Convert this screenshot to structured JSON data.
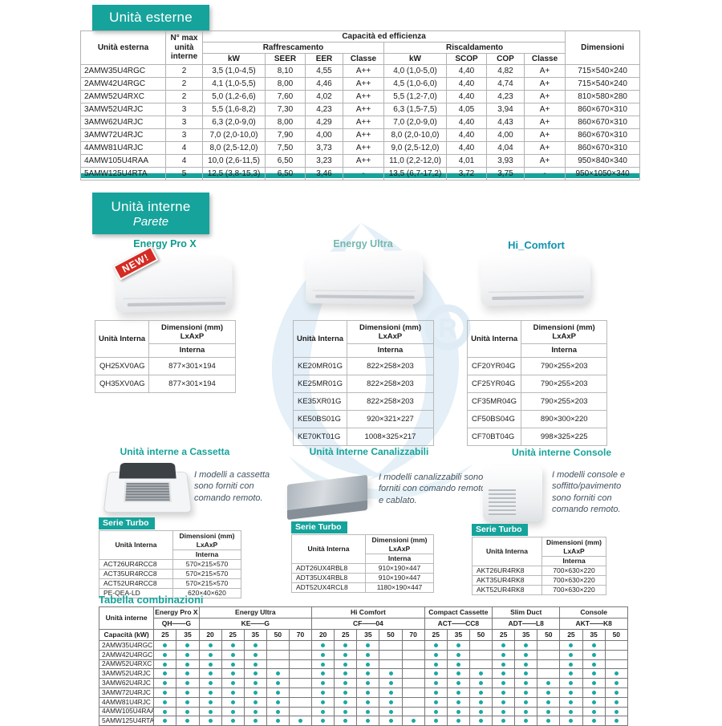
{
  "badges": {
    "esterne": "Unità esterne",
    "interne": "Unità interne",
    "parete": "Parete"
  },
  "outdoor_table": {
    "col_unita_esterna": "Unità esterna",
    "col_n_max": "N° max unità interne",
    "col_capacita": "Capacità ed efficienza",
    "col_raffrescamento": "Raffrescamento",
    "col_riscaldamento": "Riscaldamento",
    "sub_headers": [
      "kW",
      "SEER",
      "EER",
      "Classe",
      "kW",
      "SCOP",
      "COP",
      "Classe"
    ],
    "col_dimensioni": "Dimensioni",
    "rows": [
      [
        "2AMW35U4RGC",
        "2",
        "3,5 (1,0-4,5)",
        "8,10",
        "4,55",
        "A++",
        "4,0 (1,0-5,0)",
        "4,40",
        "4,82",
        "A+",
        "715×540×240"
      ],
      [
        "2AMW42U4RGC",
        "2",
        "4,1 (1,0-5,5)",
        "8,00",
        "4,46",
        "A++",
        "4,5 (1,0-6,0)",
        "4,40",
        "4,74",
        "A+",
        "715×540×240"
      ],
      [
        "2AMW52U4RXC",
        "2",
        "5,0 (1,2-6,6)",
        "7,60",
        "4,02",
        "A++",
        "5,5 (1,2-7,0)",
        "4,40",
        "4,23",
        "A+",
        "810×580×280"
      ],
      [
        "3AMW52U4RJC",
        "3",
        "5,5 (1,6-8,2)",
        "7,30",
        "4,23",
        "A++",
        "6,3 (1,5-7,5)",
        "4,05",
        "3,94",
        "A+",
        "860×670×310"
      ],
      [
        "3AMW62U4RJC",
        "3",
        "6,3 (2,0-9,0)",
        "8,00",
        "4,29",
        "A++",
        "7,0 (2,0-9,0)",
        "4,40",
        "4,43",
        "A+",
        "860×670×310"
      ],
      [
        "3AMW72U4RJC",
        "3",
        "7,0 (2,0-10,0)",
        "7,90",
        "4,00",
        "A++",
        "8,0 (2,0-10,0)",
        "4,40",
        "4,00",
        "A+",
        "860×670×310"
      ],
      [
        "4AMW81U4RJC",
        "4",
        "8,0 (2,5-12,0)",
        "7,50",
        "3,73",
        "A++",
        "9,0 (2,5-12,0)",
        "4,40",
        "4,04",
        "A+",
        "860×670×310"
      ],
      [
        "4AMW105U4RAA",
        "4",
        "10,0 (2,6-11,5)",
        "6,50",
        "3,23",
        "A++",
        "11,0 (2,2-12,0)",
        "4,01",
        "3,93",
        "A+",
        "950×840×340"
      ],
      [
        "5AMW125U4RTA",
        "5",
        "12,5 (3,8-15,3)",
        "6,50",
        "3,46",
        "-",
        "13,5 (6,7-17,2)",
        "3,72",
        "3,75",
        "-",
        "950×1050×340"
      ]
    ]
  },
  "dim_header": {
    "unita": "Unità Interna",
    "dim1": "Dimensioni (mm)",
    "dim2": "LxAxP",
    "interna": "Interna"
  },
  "parete_products": [
    {
      "name": "Energy Pro X",
      "badge": "NEW!",
      "rows": [
        [
          "QH25XV0AG",
          "877×301×194"
        ],
        [
          "QH35XV0AG",
          "877×301×194"
        ]
      ]
    },
    {
      "name": "Energy Ultra",
      "rows": [
        [
          "KE20MR01G",
          "822×258×203"
        ],
        [
          "KE25MR01G",
          "822×258×203"
        ],
        [
          "KE35XR01G",
          "822×258×203"
        ],
        [
          "KE50BS01G",
          "920×321×227"
        ],
        [
          "KE70KT01G",
          "1008×325×217"
        ]
      ]
    },
    {
      "name": "Hi_Comfort",
      "rows": [
        [
          "CF20YR04G",
          "790×255×203"
        ],
        [
          "CF25YR04G",
          "790×255×203"
        ],
        [
          "CF35MR04G",
          "790×255×203"
        ],
        [
          "CF50BS04G",
          "890×300×220"
        ],
        [
          "CF70BT04G",
          "998×325×225"
        ]
      ]
    }
  ],
  "sections": [
    {
      "title": "Unità interne a Cassetta",
      "description": "I modelli a cassetta sono forniti con comando remoto.",
      "serie_label": "Serie Turbo",
      "rows": [
        [
          "ACT26UR4RCC8",
          "570×215×570"
        ],
        [
          "ACT35UR4RCC8",
          "570×215×570"
        ],
        [
          "ACT52UR4RCC8",
          "570×215×570"
        ],
        [
          "PE-QEA-LD",
          "620×40×620"
        ]
      ]
    },
    {
      "title": "Unità Interne Canalizzabili",
      "description": "I modelli canalizzabili sono forniti con comando remoto e cablato.",
      "serie_label": "Serie Turbo",
      "rows": [
        [
          "ADT26UX4RBL8",
          "910×190×447"
        ],
        [
          "ADT35UX4RBL8",
          "910×190×447"
        ],
        [
          "ADT52UX4RCL8",
          "1180×190×447"
        ]
      ]
    },
    {
      "title": "Unità interne Console",
      "description": "I modelli console e soffitto/pavimento sono forniti con comando remoto.",
      "serie_label": "Serie Turbo",
      "rows": [
        [
          "AKT26UR4RK8",
          "700×630×220"
        ],
        [
          "AKT35UR4RK8",
          "700×630×220"
        ],
        [
          "AKT52UR4RK8",
          "700×630×220"
        ]
      ]
    }
  ],
  "combinazioni": {
    "title": "Tabella combinazioni",
    "col_unita_interne": "Unità interne",
    "col_capacita": "Capacità (kW)",
    "groups": [
      {
        "name": "Energy Pro X",
        "code": "QH——G",
        "caps": [
          "25",
          "35"
        ]
      },
      {
        "name": "Energy Ultra",
        "code": "KE——G",
        "caps": [
          "20",
          "25",
          "35",
          "50",
          "70"
        ]
      },
      {
        "name": "Hi Comfort",
        "code": "CF——04",
        "caps": [
          "20",
          "25",
          "35",
          "50",
          "70"
        ]
      },
      {
        "name": "Compact Cassette",
        "code": "ACT——CC8",
        "caps": [
          "25",
          "35",
          "50"
        ]
      },
      {
        "name": "Slim Duct",
        "code": "ADT——L8",
        "caps": [
          "25",
          "35",
          "50"
        ]
      },
      {
        "name": "Console",
        "code": "AKT——K8",
        "caps": [
          "25",
          "35",
          "50"
        ]
      }
    ],
    "rows": [
      {
        "model": "2AMW35U4RGC",
        "dots": [
          1,
          1,
          1,
          1,
          1,
          0,
          0,
          1,
          1,
          1,
          0,
          0,
          1,
          1,
          0,
          1,
          1,
          0,
          1,
          1,
          0
        ]
      },
      {
        "model": "2AMW42U4RGC",
        "dots": [
          1,
          1,
          1,
          1,
          1,
          0,
          0,
          1,
          1,
          1,
          0,
          0,
          1,
          1,
          0,
          1,
          1,
          0,
          1,
          1,
          0
        ]
      },
      {
        "model": "2AMW52U4RXC",
        "dots": [
          1,
          1,
          1,
          1,
          1,
          0,
          0,
          1,
          1,
          1,
          0,
          0,
          1,
          1,
          0,
          1,
          1,
          0,
          1,
          1,
          0
        ]
      },
      {
        "model": "3AMW52U4RJC",
        "dots": [
          1,
          1,
          1,
          1,
          1,
          1,
          0,
          1,
          1,
          1,
          1,
          0,
          1,
          1,
          1,
          1,
          1,
          0,
          1,
          1,
          1
        ]
      },
      {
        "model": "3AMW62U4RJC",
        "dots": [
          1,
          1,
          1,
          1,
          1,
          1,
          0,
          1,
          1,
          1,
          1,
          0,
          1,
          1,
          1,
          1,
          1,
          1,
          1,
          1,
          1
        ]
      },
      {
        "model": "3AMW72U4RJC",
        "dots": [
          1,
          1,
          1,
          1,
          1,
          1,
          0,
          1,
          1,
          1,
          1,
          0,
          1,
          1,
          1,
          1,
          1,
          1,
          1,
          1,
          1
        ]
      },
      {
        "model": "4AMW81U4RJC",
        "dots": [
          1,
          1,
          1,
          1,
          1,
          1,
          0,
          1,
          1,
          1,
          1,
          0,
          1,
          1,
          1,
          1,
          1,
          1,
          1,
          1,
          1
        ]
      },
      {
        "model": "4AMW105U4RAA",
        "dots": [
          1,
          1,
          1,
          1,
          1,
          1,
          0,
          1,
          1,
          1,
          1,
          0,
          1,
          1,
          1,
          1,
          1,
          1,
          1,
          1,
          1
        ]
      },
      {
        "model": "5AMW125U4RTA",
        "dots": [
          1,
          1,
          1,
          1,
          1,
          1,
          1,
          1,
          1,
          1,
          1,
          1,
          1,
          1,
          1,
          1,
          1,
          1,
          1,
          1,
          1
        ]
      }
    ]
  },
  "colors": {
    "teal": "#16a39b",
    "dot": "#1ba8a1",
    "watermark": "#d3e6f2"
  }
}
